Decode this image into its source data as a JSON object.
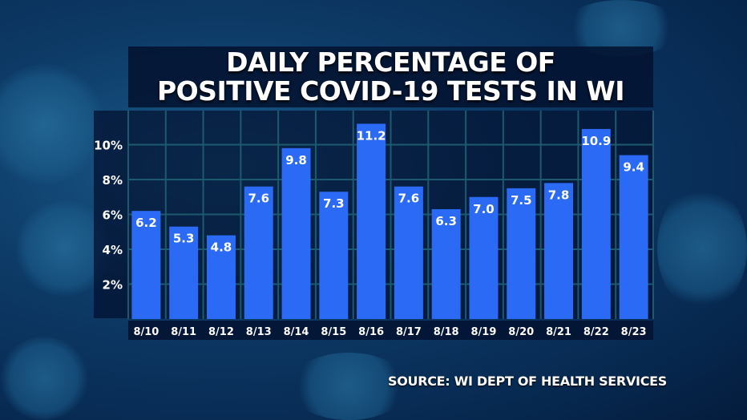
{
  "chart_data": {
    "type": "bar",
    "title": "DAILY PERCENTAGE OF POSITIVE COVID-19 TESTS IN WI",
    "title_lines": [
      "DAILY PERCENTAGE OF",
      "POSITIVE COVID-19 TESTS IN WI"
    ],
    "categories": [
      "8/10",
      "8/11",
      "8/12",
      "8/13",
      "8/14",
      "8/15",
      "8/16",
      "8/17",
      "8/18",
      "8/19",
      "8/20",
      "8/21",
      "8/22",
      "8/23"
    ],
    "values": [
      6.2,
      5.3,
      4.8,
      7.6,
      9.8,
      7.3,
      11.2,
      7.6,
      6.3,
      7.0,
      7.5,
      7.8,
      10.9,
      9.4
    ],
    "value_labels": [
      "6.2",
      "5.3",
      "4.8",
      "7.6",
      "9.8",
      "7.3",
      "11.2",
      "7.6",
      "6.3",
      "7.0",
      "7.5",
      "7.8",
      "10.9",
      "9.4"
    ],
    "yticks": [
      2,
      4,
      6,
      8,
      10
    ],
    "ytick_labels": [
      "2%",
      "4%",
      "6%",
      "8%",
      "10%"
    ],
    "ylim": [
      0,
      11.9
    ],
    "xlabel": "",
    "ylabel": "",
    "grid": true,
    "bar_color": "#2a6af5",
    "grid_color": "#1d5a6e",
    "source": "SOURCE: WI DEPT OF HEALTH SERVICES"
  }
}
